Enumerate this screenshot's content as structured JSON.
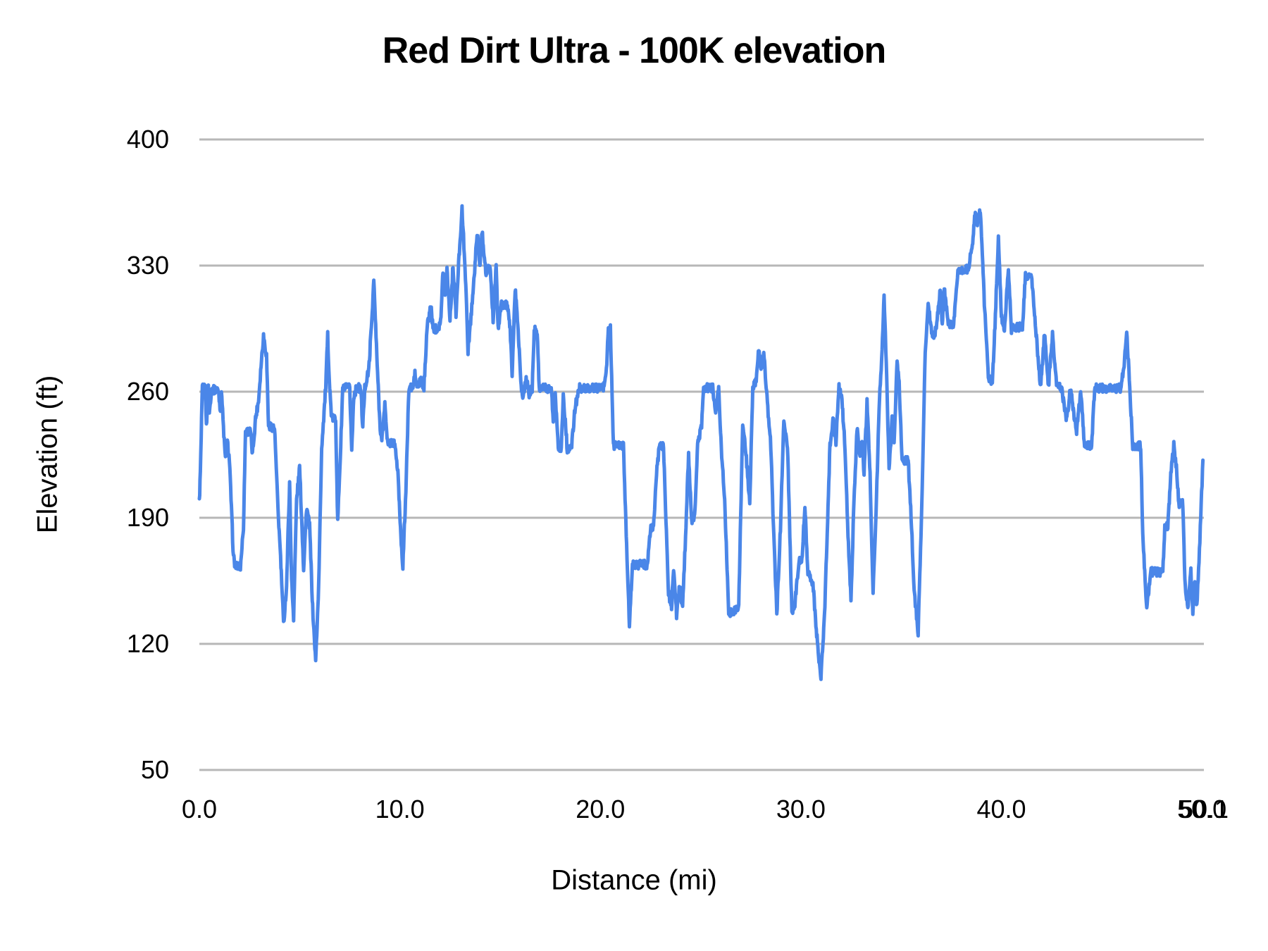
{
  "chart_data": {
    "type": "line",
    "title": "Red Dirt Ultra - 100K elevation",
    "xlabel": "Distance (mi)",
    "ylabel": "Elevation (ft)",
    "xlim": [
      0,
      50.1
    ],
    "ylim": [
      50,
      400
    ],
    "grid": "horizontal",
    "legend": "none",
    "line_color": "#4a86e8",
    "gridline_color": "#b7b7b7",
    "text_color": "#000000",
    "background_color": "#ffffff",
    "x_ticks": [
      {
        "label": "0.0",
        "value": 0
      },
      {
        "label": "10.0",
        "value": 10
      },
      {
        "label": "20.0",
        "value": 20
      },
      {
        "label": "30.0",
        "value": 30
      },
      {
        "label": "40.0",
        "value": 40
      },
      {
        "label": "50.0",
        "value": 50
      },
      {
        "label": "50.1",
        "value": 50.1
      }
    ],
    "y_ticks": [
      {
        "label": "50",
        "value": 50
      },
      {
        "label": "120",
        "value": 120
      },
      {
        "label": "190",
        "value": 190
      },
      {
        "label": "260",
        "value": 260
      },
      {
        "label": "330",
        "value": 330
      },
      {
        "label": "400",
        "value": 400
      }
    ],
    "series": [
      {
        "name": "elevation",
        "units": {
          "x": "mi",
          "y": "ft"
        },
        "points": [
          [
            0,
            199
          ],
          [
            0.05,
            215
          ],
          [
            0.15,
            262
          ],
          [
            0.3,
            262
          ],
          [
            0.35,
            240
          ],
          [
            0.45,
            262
          ],
          [
            0.5,
            248
          ],
          [
            0.6,
            261
          ],
          [
            0.95,
            261
          ],
          [
            1.05,
            250
          ],
          [
            1.1,
            262
          ],
          [
            1.2,
            240
          ],
          [
            1.3,
            222
          ],
          [
            1.4,
            232
          ],
          [
            1.5,
            222
          ],
          [
            1.6,
            195
          ],
          [
            1.7,
            168
          ],
          [
            1.8,
            163
          ],
          [
            2.05,
            163
          ],
          [
            2.2,
            185
          ],
          [
            2.3,
            238
          ],
          [
            2.55,
            238
          ],
          [
            2.65,
            225
          ],
          [
            2.8,
            245
          ],
          [
            2.95,
            255
          ],
          [
            3.1,
            278
          ],
          [
            3.2,
            291
          ],
          [
            3.35,
            280
          ],
          [
            3.45,
            241
          ],
          [
            3.75,
            240
          ],
          [
            3.9,
            200
          ],
          [
            4.05,
            168
          ],
          [
            4.2,
            131
          ],
          [
            4.35,
            152
          ],
          [
            4.5,
            210
          ],
          [
            4.6,
            155
          ],
          [
            4.7,
            135
          ],
          [
            4.85,
            200
          ],
          [
            5,
            218
          ],
          [
            5.1,
            190
          ],
          [
            5.2,
            162
          ],
          [
            5.35,
            196
          ],
          [
            5.5,
            185
          ],
          [
            5.65,
            140
          ],
          [
            5.8,
            110
          ],
          [
            5.95,
            152
          ],
          [
            6.1,
            229
          ],
          [
            6.3,
            262
          ],
          [
            6.4,
            291
          ],
          [
            6.5,
            262
          ],
          [
            6.6,
            245
          ],
          [
            6.8,
            245
          ],
          [
            6.9,
            187
          ],
          [
            7.05,
            230
          ],
          [
            7.15,
            262
          ],
          [
            7.5,
            262
          ],
          [
            7.6,
            227
          ],
          [
            7.7,
            258
          ],
          [
            7.85,
            262
          ],
          [
            8.05,
            262
          ],
          [
            8.15,
            240
          ],
          [
            8.25,
            262
          ],
          [
            8.45,
            272
          ],
          [
            8.6,
            300
          ],
          [
            8.7,
            322
          ],
          [
            8.85,
            280
          ],
          [
            9,
            243
          ],
          [
            9.1,
            232
          ],
          [
            9.25,
            253
          ],
          [
            9.4,
            230
          ],
          [
            9.55,
            232
          ],
          [
            9.75,
            231
          ],
          [
            9.9,
            215
          ],
          [
            10.05,
            180
          ],
          [
            10.15,
            163
          ],
          [
            10.3,
            205
          ],
          [
            10.45,
            262
          ],
          [
            10.65,
            262
          ],
          [
            10.75,
            270
          ],
          [
            10.85,
            262
          ],
          [
            11.05,
            266
          ],
          [
            11.2,
            262
          ],
          [
            11.35,
            295
          ],
          [
            11.55,
            308
          ],
          [
            11.65,
            295
          ],
          [
            11.9,
            295
          ],
          [
            12.05,
            300
          ],
          [
            12.15,
            328
          ],
          [
            12.25,
            313
          ],
          [
            12.35,
            328
          ],
          [
            12.5,
            300
          ],
          [
            12.65,
            330
          ],
          [
            12.8,
            302
          ],
          [
            12.95,
            335
          ],
          [
            13.1,
            361
          ],
          [
            13.25,
            330
          ],
          [
            13.4,
            283
          ],
          [
            13.55,
            302
          ],
          [
            13.75,
            330
          ],
          [
            13.85,
            349
          ],
          [
            14,
            330
          ],
          [
            14.1,
            349
          ],
          [
            14.3,
            325
          ],
          [
            14.5,
            330
          ],
          [
            14.65,
            300
          ],
          [
            14.8,
            329
          ],
          [
            14.9,
            295
          ],
          [
            15.05,
            308
          ],
          [
            15.35,
            308
          ],
          [
            15.5,
            295
          ],
          [
            15.6,
            270
          ],
          [
            15.75,
            317
          ],
          [
            15.9,
            295
          ],
          [
            16.05,
            262
          ],
          [
            16.15,
            258
          ],
          [
            16.3,
            268
          ],
          [
            16.45,
            258
          ],
          [
            16.6,
            262
          ],
          [
            16.7,
            294
          ],
          [
            16.85,
            294
          ],
          [
            16.95,
            262
          ],
          [
            17.55,
            262
          ],
          [
            17.65,
            244
          ],
          [
            17.75,
            260
          ],
          [
            17.9,
            230
          ],
          [
            18.05,
            228
          ],
          [
            18.15,
            258
          ],
          [
            18.35,
            228
          ],
          [
            18.55,
            228
          ],
          [
            18.75,
            252
          ],
          [
            18.95,
            262
          ],
          [
            20.15,
            262
          ],
          [
            20.3,
            272
          ],
          [
            20.4,
            295
          ],
          [
            20.5,
            295
          ],
          [
            20.65,
            230
          ],
          [
            21.15,
            230
          ],
          [
            21.25,
            195
          ],
          [
            21.45,
            130
          ],
          [
            21.6,
            164
          ],
          [
            22.35,
            164
          ],
          [
            22.5,
            184
          ],
          [
            22.65,
            184
          ],
          [
            22.8,
            215
          ],
          [
            22.95,
            230
          ],
          [
            23.15,
            230
          ],
          [
            23.25,
            196
          ],
          [
            23.4,
            148
          ],
          [
            23.55,
            140
          ],
          [
            23.65,
            163
          ],
          [
            23.8,
            136
          ],
          [
            23.95,
            152
          ],
          [
            24.1,
            140
          ],
          [
            24.25,
            180
          ],
          [
            24.4,
            226
          ],
          [
            24.55,
            187
          ],
          [
            24.7,
            190
          ],
          [
            24.85,
            230
          ],
          [
            25.05,
            242
          ],
          [
            25.15,
            262
          ],
          [
            25.6,
            262
          ],
          [
            25.75,
            248
          ],
          [
            25.9,
            262
          ],
          [
            26.05,
            225
          ],
          [
            26.2,
            200
          ],
          [
            26.4,
            136
          ],
          [
            26.55,
            138
          ],
          [
            26.9,
            140
          ],
          [
            27.1,
            243
          ],
          [
            27.3,
            220
          ],
          [
            27.45,
            197
          ],
          [
            27.6,
            262
          ],
          [
            27.75,
            265
          ],
          [
            27.9,
            283
          ],
          [
            28.05,
            272
          ],
          [
            28.15,
            283
          ],
          [
            28.35,
            250
          ],
          [
            28.5,
            230
          ],
          [
            28.65,
            180
          ],
          [
            28.8,
            136
          ],
          [
            29,
            190
          ],
          [
            29.15,
            245
          ],
          [
            29.35,
            225
          ],
          [
            29.55,
            137
          ],
          [
            29.7,
            142
          ],
          [
            29.9,
            166
          ],
          [
            30.05,
            166
          ],
          [
            30.2,
            197
          ],
          [
            30.35,
            160
          ],
          [
            30.6,
            154
          ],
          [
            30.75,
            130
          ],
          [
            31,
            100
          ],
          [
            31.2,
            142
          ],
          [
            31.45,
            230
          ],
          [
            31.6,
            245
          ],
          [
            31.75,
            232
          ],
          [
            31.9,
            262
          ],
          [
            32.05,
            255
          ],
          [
            32.2,
            230
          ],
          [
            32.35,
            180
          ],
          [
            32.5,
            144
          ],
          [
            32.65,
            200
          ],
          [
            32.8,
            240
          ],
          [
            32.95,
            225
          ],
          [
            33.05,
            232
          ],
          [
            33.15,
            215
          ],
          [
            33.3,
            254
          ],
          [
            33.45,
            215
          ],
          [
            33.6,
            148
          ],
          [
            33.75,
            192
          ],
          [
            33.9,
            252
          ],
          [
            34.05,
            283
          ],
          [
            34.15,
            315
          ],
          [
            34.3,
            260
          ],
          [
            34.4,
            215
          ],
          [
            34.55,
            245
          ],
          [
            34.65,
            230
          ],
          [
            34.8,
            277
          ],
          [
            34.9,
            265
          ],
          [
            35.05,
            222
          ],
          [
            35.35,
            222
          ],
          [
            35.5,
            190
          ],
          [
            35.65,
            150
          ],
          [
            35.85,
            126
          ],
          [
            36.05,
            205
          ],
          [
            36.2,
            282
          ],
          [
            36.35,
            309
          ],
          [
            36.5,
            295
          ],
          [
            36.65,
            290
          ],
          [
            36.8,
            300
          ],
          [
            36.95,
            317
          ],
          [
            37.05,
            297
          ],
          [
            37.15,
            317
          ],
          [
            37.35,
            297
          ],
          [
            37.6,
            297
          ],
          [
            37.85,
            328
          ],
          [
            38.35,
            328
          ],
          [
            38.55,
            342
          ],
          [
            38.7,
            361
          ],
          [
            38.8,
            354
          ],
          [
            38.95,
            361
          ],
          [
            39.15,
            310
          ],
          [
            39.35,
            268
          ],
          [
            39.55,
            265
          ],
          [
            39.7,
            302
          ],
          [
            39.85,
            345
          ],
          [
            40,
            302
          ],
          [
            40.15,
            294
          ],
          [
            40.35,
            328
          ],
          [
            40.5,
            294
          ],
          [
            40.65,
            296
          ],
          [
            41.05,
            296
          ],
          [
            41.2,
            324
          ],
          [
            41.5,
            324
          ],
          [
            41.75,
            290
          ],
          [
            41.95,
            262
          ],
          [
            42.15,
            292
          ],
          [
            42.35,
            263
          ],
          [
            42.55,
            292
          ],
          [
            42.75,
            264
          ],
          [
            43,
            262
          ],
          [
            43.25,
            244
          ],
          [
            43.45,
            262
          ],
          [
            43.75,
            237
          ],
          [
            43.95,
            260
          ],
          [
            44.15,
            230
          ],
          [
            44.5,
            230
          ],
          [
            44.65,
            262
          ],
          [
            45.95,
            262
          ],
          [
            46.1,
            272
          ],
          [
            46.25,
            295
          ],
          [
            46.4,
            262
          ],
          [
            46.55,
            230
          ],
          [
            46.95,
            230
          ],
          [
            47.05,
            180
          ],
          [
            47.25,
            139
          ],
          [
            47.45,
            160
          ],
          [
            48.05,
            160
          ],
          [
            48.15,
            185
          ],
          [
            48.3,
            185
          ],
          [
            48.45,
            215
          ],
          [
            48.6,
            230
          ],
          [
            48.75,
            215
          ],
          [
            48.85,
            198
          ],
          [
            49.05,
            198
          ],
          [
            49.15,
            155
          ],
          [
            49.3,
            140
          ],
          [
            49.45,
            160
          ],
          [
            49.55,
            138
          ],
          [
            49.65,
            155
          ],
          [
            49.75,
            140
          ],
          [
            49.9,
            178
          ],
          [
            50.05,
            222
          ]
        ]
      }
    ]
  }
}
